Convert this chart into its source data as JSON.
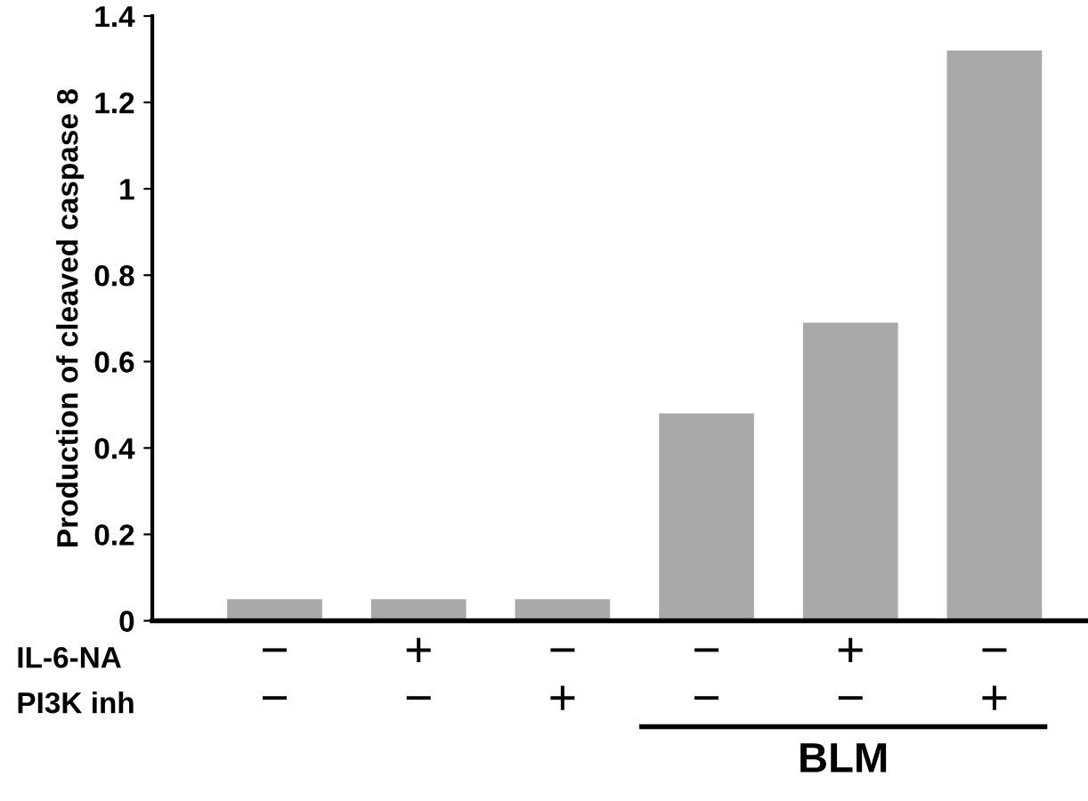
{
  "chart_data": {
    "type": "bar",
    "ylabel": "Production of cleaved caspase 8",
    "categories": [
      "−\n−",
      "+\n−",
      "−\n+",
      "−\n−",
      "+\n−",
      "−\n+"
    ],
    "values": [
      0.05,
      0.05,
      0.05,
      0.48,
      0.69,
      1.32
    ],
    "color": "#a9a9a9",
    "ylim": [
      0,
      1.4
    ],
    "yticks": [
      0,
      0.2,
      0.4,
      0.6,
      0.8,
      1,
      1.2,
      1.4
    ],
    "grid": false,
    "annotations": [
      "IL-6-NA",
      "PI3K inh",
      "BLM"
    ]
  }
}
